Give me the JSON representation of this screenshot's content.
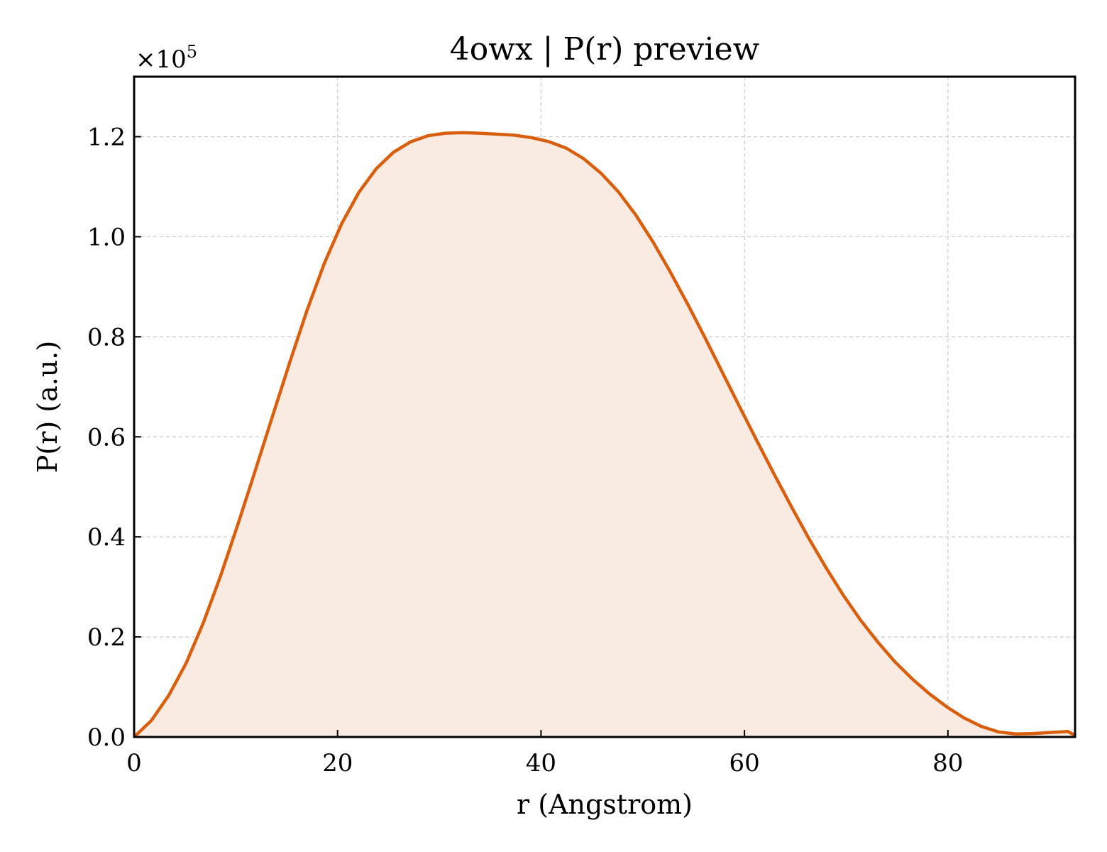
{
  "chart_data": {
    "type": "area",
    "title": "4owx | P(r) preview",
    "xlabel": "r (Angstrom)",
    "ylabel": "P(r) (a.u.)",
    "y_multiplier_label": "×10",
    "y_multiplier_exponent": "5",
    "xlim": [
      0,
      92.5
    ],
    "ylim": [
      0,
      1.32
    ],
    "x_ticks": [
      0,
      20,
      40,
      60,
      80
    ],
    "x_tick_labels": [
      "0",
      "20",
      "40",
      "60",
      "80"
    ],
    "y_ticks": [
      0.0,
      0.2,
      0.4,
      0.6,
      0.8,
      1.0,
      1.2
    ],
    "y_tick_labels": [
      "0.0",
      "0.2",
      "0.4",
      "0.6",
      "0.8",
      "1.0",
      "1.2"
    ],
    "grid": true,
    "colors": {
      "line": "#d95f0e",
      "fill": "#f9ebe1"
    },
    "series": [
      {
        "x": [
          0,
          1.7,
          3.4,
          5.1,
          6.8,
          8.5,
          10.2,
          11.9,
          13.6,
          15.3,
          17.0,
          18.7,
          20.4,
          22.1,
          23.8,
          25.5,
          27.2,
          28.9,
          30.6,
          32.3,
          34.0,
          35.7,
          37.4,
          39.1,
          40.8,
          42.5,
          44.2,
          45.9,
          47.6,
          49.3,
          51.0,
          52.7,
          54.4,
          56.1,
          57.8,
          59.5,
          61.2,
          62.9,
          64.6,
          66.3,
          68.0,
          69.7,
          71.4,
          73.1,
          74.8,
          76.5,
          78.2,
          79.9,
          81.6,
          83.3,
          85.0,
          86.7,
          88.4,
          90.1,
          91.8,
          92.5
        ],
        "y": [
          0.0,
          0.033,
          0.083,
          0.147,
          0.228,
          0.322,
          0.425,
          0.532,
          0.641,
          0.749,
          0.853,
          0.947,
          1.026,
          1.089,
          1.136,
          1.169,
          1.19,
          1.202,
          1.207,
          1.208,
          1.207,
          1.205,
          1.203,
          1.198,
          1.19,
          1.177,
          1.156,
          1.127,
          1.09,
          1.044,
          0.99,
          0.93,
          0.866,
          0.799,
          0.73,
          0.661,
          0.593,
          0.526,
          0.461,
          0.398,
          0.339,
          0.284,
          0.234,
          0.19,
          0.15,
          0.116,
          0.086,
          0.06,
          0.038,
          0.021,
          0.01,
          0.006,
          0.007,
          0.009,
          0.011,
          0.003
        ]
      }
    ]
  }
}
